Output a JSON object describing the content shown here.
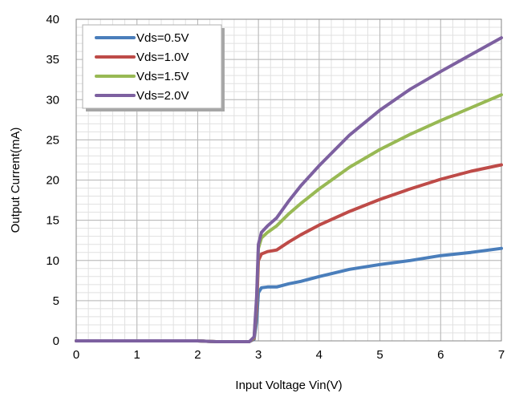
{
  "chart_data": {
    "type": "line",
    "xlabel": "Input Voltage Vin(V)",
    "ylabel": "Output Current(mA)",
    "xlim": [
      0,
      7
    ],
    "ylim": [
      0,
      40
    ],
    "x_ticks": [
      "0",
      "1",
      "2",
      "3",
      "4",
      "5",
      "6",
      "7"
    ],
    "y_ticks": [
      "0",
      "5",
      "10",
      "15",
      "20",
      "25",
      "30",
      "35",
      "40"
    ],
    "grid": true,
    "legend_position": "top-left",
    "series": [
      {
        "name": "Vds=0.5V",
        "color": "#4a7ebb",
        "points": [
          [
            0,
            0
          ],
          [
            1,
            0
          ],
          [
            2,
            0
          ],
          [
            2.3,
            -0.1
          ],
          [
            2.6,
            -0.1
          ],
          [
            2.85,
            -0.1
          ],
          [
            2.93,
            0.2
          ],
          [
            2.97,
            2.5
          ],
          [
            3.0,
            6.0
          ],
          [
            3.05,
            6.6
          ],
          [
            3.15,
            6.7
          ],
          [
            3.3,
            6.7
          ],
          [
            3.5,
            7.1
          ],
          [
            3.7,
            7.4
          ],
          [
            4.0,
            8.0
          ],
          [
            4.5,
            8.9
          ],
          [
            5.0,
            9.5
          ],
          [
            5.5,
            10.0
          ],
          [
            6.0,
            10.6
          ],
          [
            6.5,
            11.0
          ],
          [
            7.0,
            11.5
          ]
        ]
      },
      {
        "name": "Vds=1.0V",
        "color": "#be4b48",
        "points": [
          [
            0,
            0
          ],
          [
            1,
            0
          ],
          [
            2,
            0
          ],
          [
            2.3,
            -0.1
          ],
          [
            2.6,
            -0.1
          ],
          [
            2.85,
            -0.1
          ],
          [
            2.93,
            0.3
          ],
          [
            2.97,
            4.0
          ],
          [
            3.0,
            10.0
          ],
          [
            3.05,
            10.8
          ],
          [
            3.15,
            11.1
          ],
          [
            3.3,
            11.3
          ],
          [
            3.5,
            12.3
          ],
          [
            3.7,
            13.2
          ],
          [
            4.0,
            14.4
          ],
          [
            4.5,
            16.1
          ],
          [
            5.0,
            17.6
          ],
          [
            5.5,
            18.9
          ],
          [
            6.0,
            20.1
          ],
          [
            6.5,
            21.1
          ],
          [
            7.0,
            21.9
          ]
        ]
      },
      {
        "name": "Vds=1.5V",
        "color": "#98b954",
        "points": [
          [
            0,
            0
          ],
          [
            1,
            0
          ],
          [
            2,
            0
          ],
          [
            2.3,
            -0.1
          ],
          [
            2.6,
            -0.1
          ],
          [
            2.85,
            -0.1
          ],
          [
            2.93,
            0.4
          ],
          [
            2.97,
            5.0
          ],
          [
            3.0,
            11.5
          ],
          [
            3.05,
            12.8
          ],
          [
            3.15,
            13.5
          ],
          [
            3.3,
            14.3
          ],
          [
            3.5,
            15.8
          ],
          [
            3.7,
            17.1
          ],
          [
            4.0,
            18.9
          ],
          [
            4.5,
            21.6
          ],
          [
            5.0,
            23.8
          ],
          [
            5.5,
            25.7
          ],
          [
            6.0,
            27.4
          ],
          [
            6.5,
            29.0
          ],
          [
            7.0,
            30.6
          ]
        ]
      },
      {
        "name": "Vds=2.0V",
        "color": "#7d60a0",
        "points": [
          [
            0,
            0
          ],
          [
            1,
            0
          ],
          [
            2,
            0
          ],
          [
            2.3,
            -0.1
          ],
          [
            2.6,
            -0.1
          ],
          [
            2.85,
            -0.1
          ],
          [
            2.93,
            0.5
          ],
          [
            2.97,
            5.5
          ],
          [
            3.0,
            12.0
          ],
          [
            3.05,
            13.5
          ],
          [
            3.15,
            14.3
          ],
          [
            3.3,
            15.3
          ],
          [
            3.5,
            17.4
          ],
          [
            3.7,
            19.3
          ],
          [
            4.0,
            21.8
          ],
          [
            4.5,
            25.6
          ],
          [
            5.0,
            28.7
          ],
          [
            5.5,
            31.3
          ],
          [
            6.0,
            33.5
          ],
          [
            6.5,
            35.6
          ],
          [
            7.0,
            37.7
          ]
        ]
      }
    ]
  }
}
